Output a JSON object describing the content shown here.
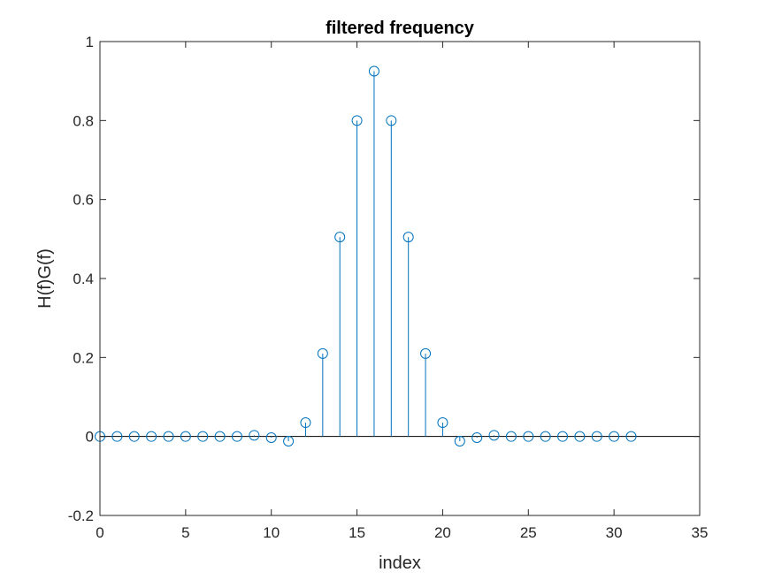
{
  "chart_data": {
    "type": "stem",
    "title": "filtered frequency",
    "xlabel": "index",
    "ylabel": "H(f)G(f)",
    "xlim": [
      0,
      35
    ],
    "ylim": [
      -0.2,
      1
    ],
    "xticks": [
      0,
      5,
      10,
      15,
      20,
      25,
      30,
      35
    ],
    "yticks": [
      -0.2,
      0,
      0.2,
      0.4,
      0.6,
      0.8,
      1
    ],
    "ytick_labels": [
      "-0.2",
      "0",
      "0.2",
      "0.4",
      "0.6",
      "0.8",
      "1"
    ],
    "grid": false,
    "baseline": 0,
    "x": [
      0,
      1,
      2,
      3,
      4,
      5,
      6,
      7,
      8,
      9,
      10,
      11,
      12,
      13,
      14,
      15,
      16,
      17,
      18,
      19,
      20,
      21,
      22,
      23,
      24,
      25,
      26,
      27,
      28,
      29,
      30,
      31
    ],
    "values": [
      0,
      0,
      0,
      0,
      0,
      0,
      0,
      0,
      0,
      0.003,
      -0.003,
      -0.012,
      0.035,
      0.21,
      0.505,
      0.8,
      0.925,
      0.8,
      0.505,
      0.21,
      0.035,
      -0.012,
      -0.003,
      0.003,
      0,
      0,
      0,
      0,
      0,
      0,
      0,
      0
    ],
    "color": "#0072BD"
  }
}
